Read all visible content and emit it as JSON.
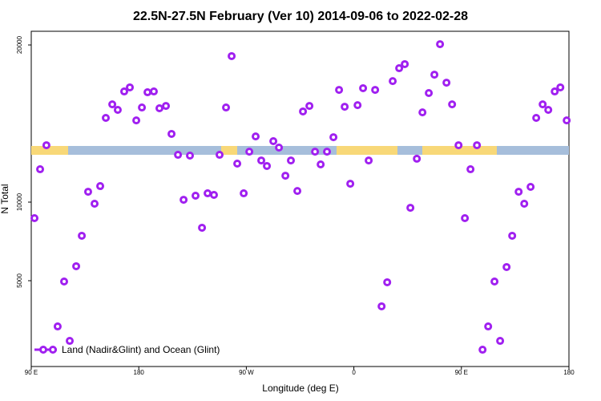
{
  "chart_data": {
    "type": "scatter",
    "title": "22.5N-27.5N February (Ver 10)   2014-09-06 to 2022-02-28",
    "x_label": "Longitude (deg E)",
    "y_label": "N Total",
    "xlim": [
      90,
      540
    ],
    "ylim": [
      -460,
      20870
    ],
    "xticks": [
      {
        "value": 90,
        "label": "90 E"
      },
      180,
      {
        "value": 270,
        "label": "90 W"
      },
      {
        "value": 360,
        "label": "0"
      },
      {
        "value": 450,
        "label": "90 E"
      },
      {
        "value": 540,
        "label": "180"
      }
    ],
    "yticks": [
      5000,
      10000,
      20000
    ],
    "legend": "bottom-left",
    "series": [
      {
        "name": "Land (Nadir&Glint) and Ocean (Glint)",
        "color": "#a020f0",
        "x": [
          92.7,
          97.4,
          102.7,
          112.1,
          117.5,
          122.2,
          127.6,
          132.3,
          137.6,
          143.0,
          147.7,
          152.4,
          157.8,
          162.4,
          167.8,
          172.5,
          177.9,
          182.6,
          187.3,
          192.6,
          197.3,
          202.7,
          207.4,
          212.8,
          217.5,
          222.8,
          227.5,
          232.9,
          237.6,
          242.9,
          247.6,
          253.0,
          257.7,
          262.4,
          267.8,
          272.5,
          277.8,
          282.5,
          287.2,
          292.6,
          297.3,
          302.7,
          307.3,
          312.7,
          317.4,
          322.8,
          327.5,
          332.2,
          337.5,
          342.9,
          347.6,
          352.3,
          357.0,
          363.1,
          367.7,
          372.4,
          377.8,
          383.2,
          387.9,
          392.5,
          397.9,
          402.6,
          407.3,
          412.7,
          417.4,
          422.7,
          427.4,
          432.1,
          437.5,
          442.2,
          447.6,
          452.9,
          457.6,
          463.0,
          467.7,
          472.4,
          477.7,
          482.4,
          487.8,
          492.5,
          497.9,
          502.6,
          507.9,
          512.6,
          518.0,
          522.7,
          528.1,
          532.8,
          538.1
        ],
        "values": [
          8980,
          12090,
          13620,
          2090,
          4950,
          1170,
          5920,
          7860,
          10660,
          9900,
          11020,
          15360,
          16220,
          15870,
          17040,
          17300,
          15200,
          16020,
          16990,
          17040,
          15970,
          16120,
          14340,
          13010,
          10150,
          12960,
          10410,
          8370,
          10560,
          10460,
          13010,
          16020,
          19290,
          12450,
          10560,
          13210,
          14180,
          12650,
          12300,
          13880,
          13470,
          11680,
          12650,
          10710,
          15770,
          16120,
          13210,
          12400,
          13210,
          14130,
          17140,
          16070,
          11170,
          16170,
          17250,
          12650,
          17140,
          3370,
          4900,
          17700,
          18520,
          18780,
          9640,
          12760,
          15710,
          16940,
          18110,
          20050,
          17600,
          16220,
          13620,
          8980,
          12090,
          13620,
          610,
          2090,
          4950,
          1170,
          5870,
          7860,
          10660,
          9900,
          10970,
          15360,
          16220,
          15870,
          17040,
          17300,
          15200
        ]
      }
    ]
  }
}
